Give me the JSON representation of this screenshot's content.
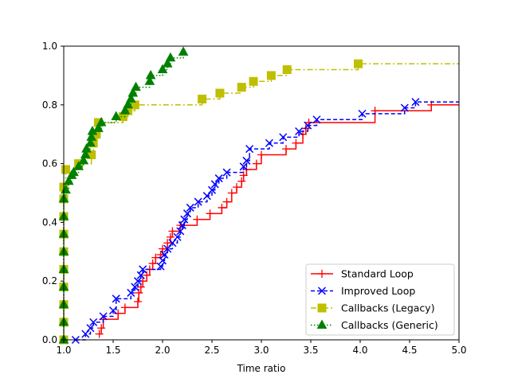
{
  "chart_data": {
    "type": "line",
    "title": "",
    "xlabel": "Time ratio",
    "ylabel": "",
    "xlim": [
      1.0,
      5.0
    ],
    "ylim": [
      0.0,
      1.0
    ],
    "xticks": [
      "1.0",
      "1.5",
      "2.0",
      "2.5",
      "3.0",
      "3.5",
      "4.0",
      "4.5",
      "5.0"
    ],
    "yticks": [
      "0.0",
      "0.2",
      "0.4",
      "0.6",
      "0.8",
      "1.0"
    ],
    "grid": false,
    "legend_position": "bottom-right",
    "series": [
      {
        "name": "Standard Loop",
        "color": "#ff0000",
        "line_style": "solid",
        "marker": "plus",
        "points": [
          [
            1.36,
            0.02
          ],
          [
            1.38,
            0.04
          ],
          [
            1.4,
            0.07
          ],
          [
            1.55,
            0.09
          ],
          [
            1.62,
            0.11
          ],
          [
            1.75,
            0.13
          ],
          [
            1.76,
            0.16
          ],
          [
            1.78,
            0.18
          ],
          [
            1.8,
            0.2
          ],
          [
            1.84,
            0.22
          ],
          [
            1.87,
            0.24
          ],
          [
            1.9,
            0.26
          ],
          [
            1.93,
            0.28
          ],
          [
            1.98,
            0.29
          ],
          [
            2.0,
            0.31
          ],
          [
            2.05,
            0.33
          ],
          [
            2.08,
            0.35
          ],
          [
            2.1,
            0.37
          ],
          [
            2.18,
            0.39
          ],
          [
            2.35,
            0.41
          ],
          [
            2.48,
            0.43
          ],
          [
            2.6,
            0.45
          ],
          [
            2.65,
            0.47
          ],
          [
            2.7,
            0.5
          ],
          [
            2.75,
            0.52
          ],
          [
            2.8,
            0.54
          ],
          [
            2.82,
            0.56
          ],
          [
            2.85,
            0.58
          ],
          [
            2.95,
            0.6
          ],
          [
            3.0,
            0.63
          ],
          [
            3.25,
            0.65
          ],
          [
            3.35,
            0.67
          ],
          [
            3.42,
            0.7
          ],
          [
            3.45,
            0.72
          ],
          [
            3.48,
            0.74
          ],
          [
            4.15,
            0.78
          ],
          [
            4.72,
            0.8
          ]
        ],
        "end_x": 5.0
      },
      {
        "name": "Improved Loop",
        "color": "#0000ff",
        "line_style": "dashed",
        "marker": "x",
        "points": [
          [
            1.12,
            0.0
          ],
          [
            1.22,
            0.02
          ],
          [
            1.27,
            0.04
          ],
          [
            1.3,
            0.06
          ],
          [
            1.4,
            0.08
          ],
          [
            1.5,
            0.1
          ],
          [
            1.53,
            0.14
          ],
          [
            1.68,
            0.16
          ],
          [
            1.72,
            0.18
          ],
          [
            1.75,
            0.2
          ],
          [
            1.78,
            0.22
          ],
          [
            1.8,
            0.24
          ],
          [
            1.98,
            0.25
          ],
          [
            2.0,
            0.27
          ],
          [
            2.02,
            0.29
          ],
          [
            2.05,
            0.31
          ],
          [
            2.1,
            0.33
          ],
          [
            2.15,
            0.35
          ],
          [
            2.18,
            0.37
          ],
          [
            2.2,
            0.39
          ],
          [
            2.22,
            0.41
          ],
          [
            2.25,
            0.43
          ],
          [
            2.28,
            0.45
          ],
          [
            2.36,
            0.47
          ],
          [
            2.45,
            0.49
          ],
          [
            2.5,
            0.51
          ],
          [
            2.53,
            0.53
          ],
          [
            2.57,
            0.55
          ],
          [
            2.65,
            0.57
          ],
          [
            2.82,
            0.59
          ],
          [
            2.85,
            0.61
          ],
          [
            2.88,
            0.65
          ],
          [
            3.08,
            0.67
          ],
          [
            3.22,
            0.69
          ],
          [
            3.38,
            0.71
          ],
          [
            3.47,
            0.73
          ],
          [
            3.56,
            0.75
          ],
          [
            4.02,
            0.77
          ],
          [
            4.45,
            0.79
          ],
          [
            4.56,
            0.81
          ]
        ],
        "end_x": 5.0
      },
      {
        "name": "Callbacks (Legacy)",
        "color": "#bfbf00",
        "line_style": "dashdot",
        "marker": "square",
        "points": [
          [
            1.0,
            0.0
          ],
          [
            1.0,
            0.06
          ],
          [
            1.0,
            0.12
          ],
          [
            1.0,
            0.18
          ],
          [
            1.0,
            0.24
          ],
          [
            1.0,
            0.3
          ],
          [
            1.0,
            0.36
          ],
          [
            1.0,
            0.42
          ],
          [
            1.0,
            0.48
          ],
          [
            1.0,
            0.52
          ],
          [
            1.02,
            0.58
          ],
          [
            1.15,
            0.6
          ],
          [
            1.28,
            0.63
          ],
          [
            1.3,
            0.67
          ],
          [
            1.33,
            0.7
          ],
          [
            1.35,
            0.74
          ],
          [
            1.6,
            0.76
          ],
          [
            1.65,
            0.78
          ],
          [
            1.72,
            0.8
          ],
          [
            2.4,
            0.82
          ],
          [
            2.58,
            0.84
          ],
          [
            2.8,
            0.86
          ],
          [
            2.92,
            0.88
          ],
          [
            3.1,
            0.9
          ],
          [
            3.26,
            0.92
          ],
          [
            3.98,
            0.94
          ]
        ],
        "end_x": 5.0
      },
      {
        "name": "Callbacks (Generic)",
        "color": "#008000",
        "line_style": "dotted",
        "marker": "triangle",
        "points": [
          [
            1.0,
            0.0
          ],
          [
            1.0,
            0.06
          ],
          [
            1.0,
            0.12
          ],
          [
            1.0,
            0.18
          ],
          [
            1.0,
            0.24
          ],
          [
            1.0,
            0.3
          ],
          [
            1.0,
            0.36
          ],
          [
            1.0,
            0.42
          ],
          [
            1.0,
            0.48
          ],
          [
            1.02,
            0.51
          ],
          [
            1.05,
            0.54
          ],
          [
            1.08,
            0.56
          ],
          [
            1.1,
            0.57
          ],
          [
            1.15,
            0.59
          ],
          [
            1.2,
            0.61
          ],
          [
            1.22,
            0.63
          ],
          [
            1.23,
            0.65
          ],
          [
            1.27,
            0.67
          ],
          [
            1.28,
            0.69
          ],
          [
            1.29,
            0.71
          ],
          [
            1.35,
            0.72
          ],
          [
            1.38,
            0.74
          ],
          [
            1.53,
            0.76
          ],
          [
            1.62,
            0.78
          ],
          [
            1.65,
            0.8
          ],
          [
            1.68,
            0.82
          ],
          [
            1.7,
            0.84
          ],
          [
            1.73,
            0.86
          ],
          [
            1.87,
            0.88
          ],
          [
            1.88,
            0.9
          ],
          [
            2.0,
            0.92
          ],
          [
            2.05,
            0.94
          ],
          [
            2.08,
            0.96
          ],
          [
            2.21,
            0.98
          ]
        ],
        "end_x": 2.21
      }
    ]
  }
}
